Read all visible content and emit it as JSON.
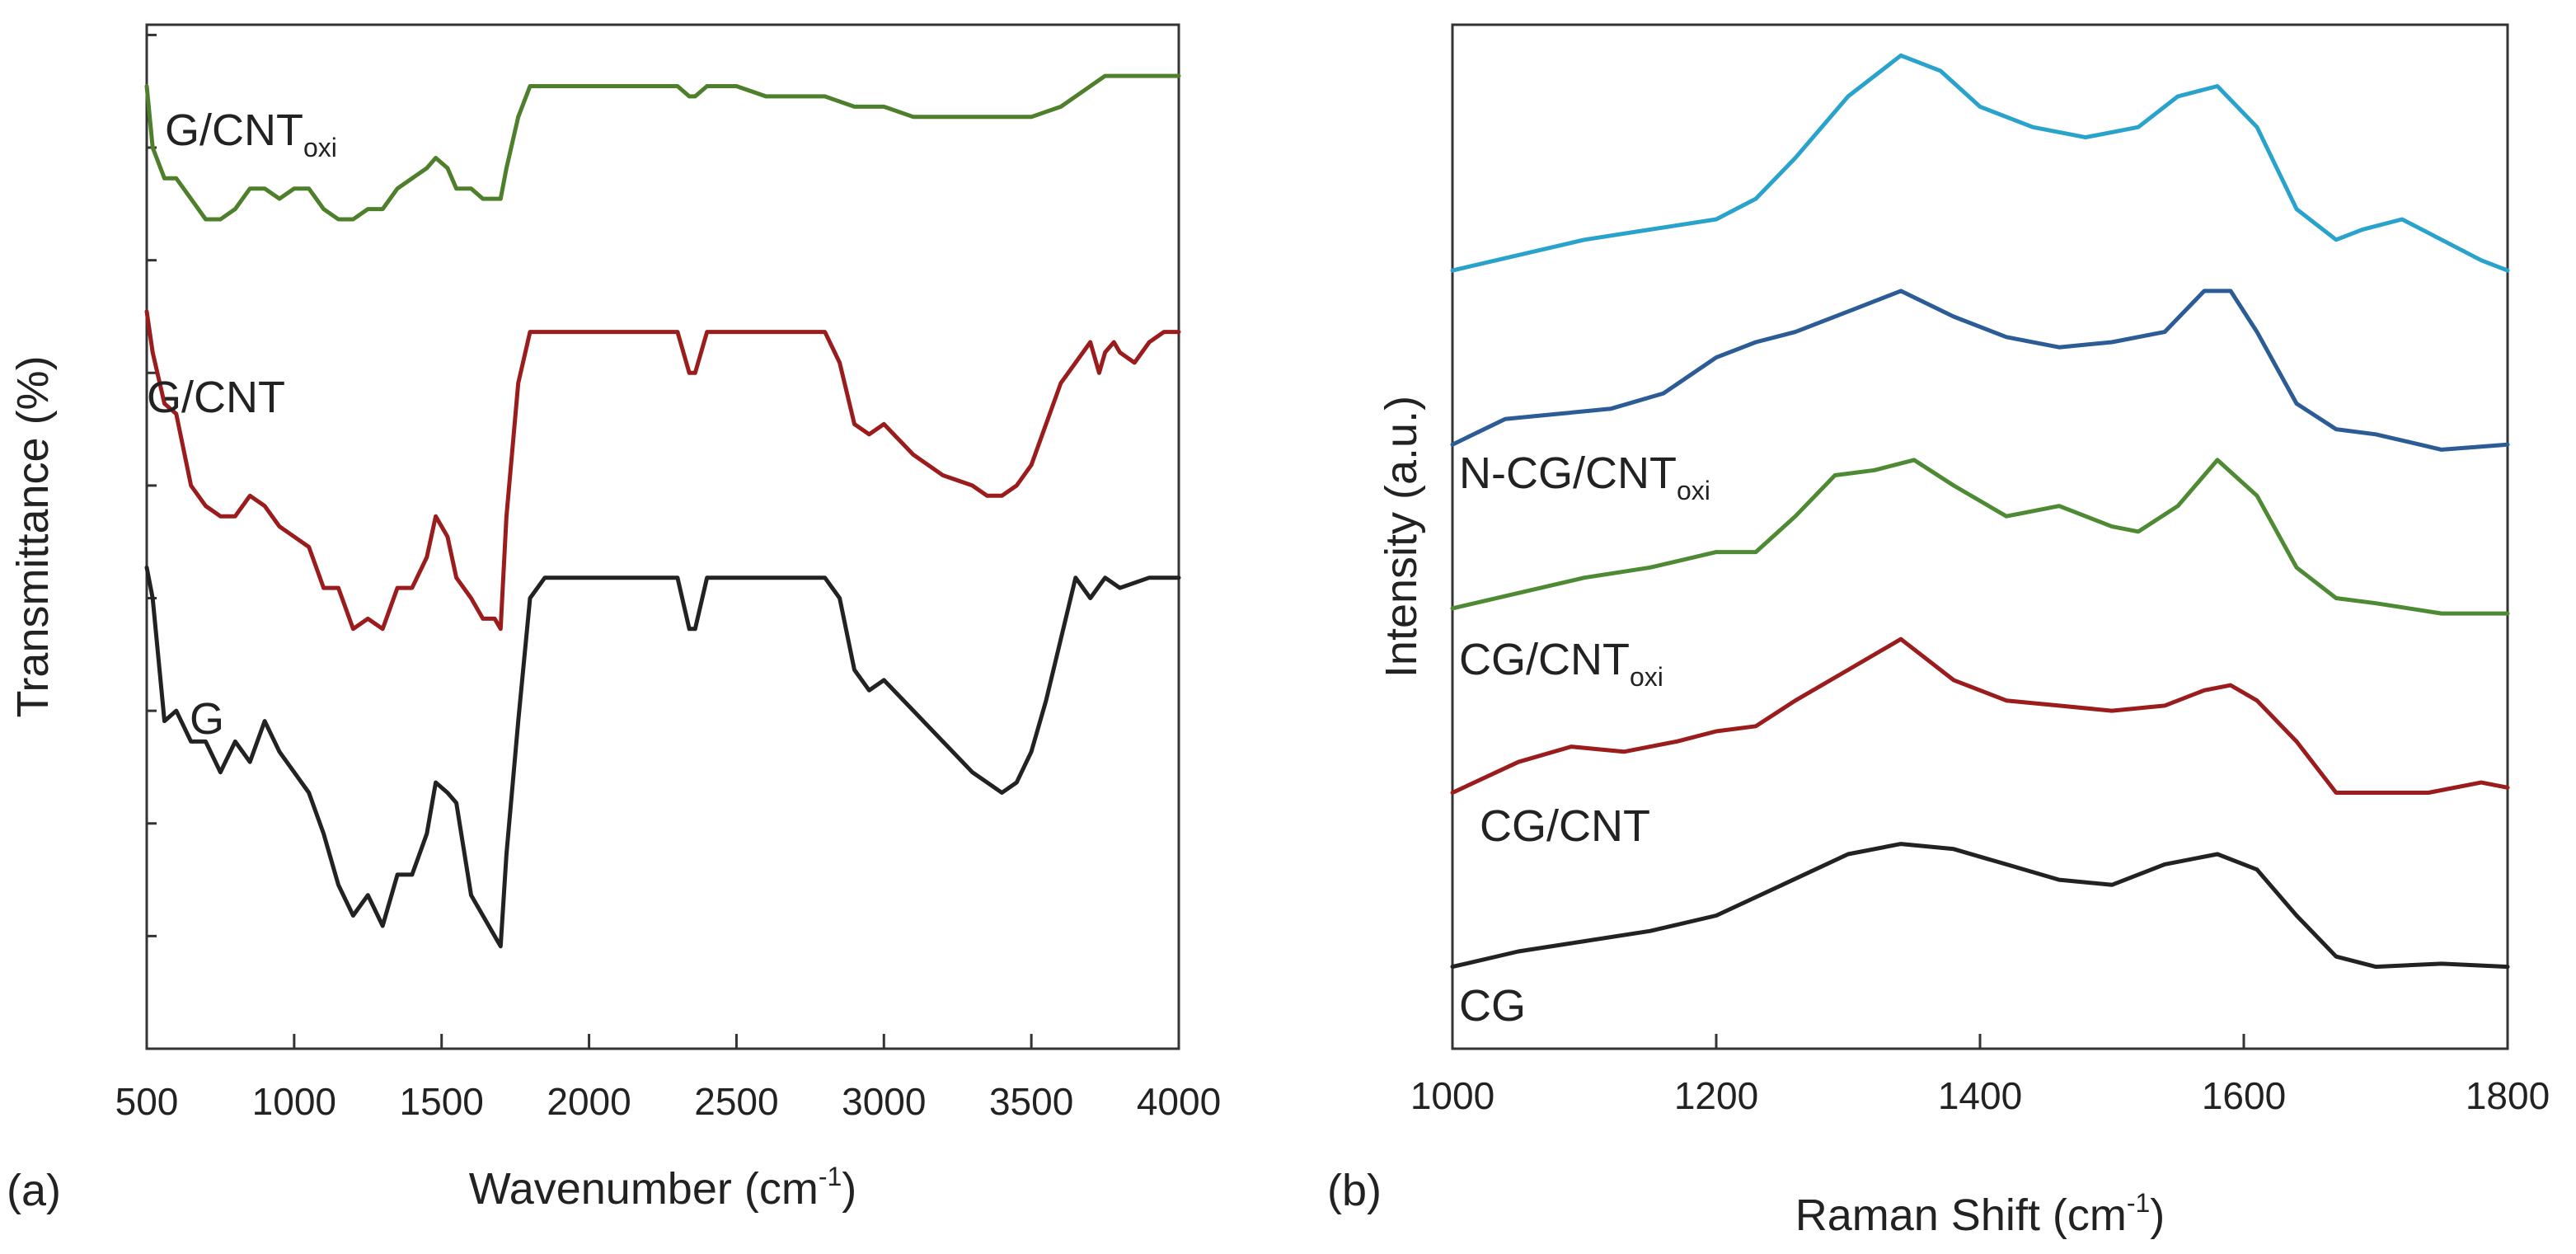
{
  "figure": {
    "panels": [
      "(a)",
      "(b)"
    ]
  },
  "chart_data": [
    {
      "type": "line",
      "panel_label": "(a)",
      "title": "",
      "xlabel": "Wavenumber (cm",
      "xlabel_sup": "-1",
      "xlabel_tail": ")",
      "ylabel": "Transmittance (%)",
      "xlim": [
        500,
        4000
      ],
      "ylim": [
        0,
        100
      ],
      "xticks": [
        500,
        1000,
        1500,
        2000,
        2500,
        3000,
        3500,
        4000
      ],
      "yticks": [
        0,
        11,
        22,
        33,
        44,
        55,
        66,
        77,
        88,
        99
      ],
      "y_tick_labels_shown": false,
      "grid": false,
      "legend": "inline labels",
      "series": [
        {
          "name": "G",
          "label_sub": "",
          "color": "#222222",
          "x": [
            500,
            520,
            560,
            600,
            650,
            700,
            750,
            800,
            850,
            900,
            950,
            1000,
            1050,
            1100,
            1150,
            1200,
            1250,
            1300,
            1350,
            1400,
            1450,
            1480,
            1520,
            1550,
            1600,
            1640,
            1680,
            1700,
            1720,
            1760,
            1800,
            1850,
            1900,
            2000,
            2100,
            2200,
            2300,
            2340,
            2360,
            2400,
            2500,
            2600,
            2700,
            2800,
            2850,
            2900,
            2950,
            3000,
            3100,
            3200,
            3300,
            3350,
            3400,
            3450,
            3500,
            3550,
            3600,
            3650,
            3700,
            3750,
            3800,
            3900,
            4000
          ],
          "y": [
            47,
            44,
            32,
            33,
            30,
            30,
            27,
            30,
            28,
            32,
            29,
            27,
            25,
            21,
            16,
            13,
            15,
            12,
            17,
            17,
            21,
            26,
            25,
            24,
            15,
            13,
            11,
            10,
            19,
            32,
            44,
            46,
            46,
            46,
            46,
            46,
            46,
            41,
            41,
            46,
            46,
            46,
            46,
            46,
            44,
            37,
            35,
            36,
            33,
            30,
            27,
            26,
            25,
            26,
            29,
            34,
            40,
            46,
            44,
            46,
            45,
            46,
            46
          ]
        },
        {
          "name": "G/CNT",
          "label_sub": "",
          "color": "#9b1c1c",
          "x": [
            500,
            520,
            560,
            600,
            650,
            700,
            750,
            800,
            850,
            900,
            950,
            1000,
            1050,
            1100,
            1150,
            1200,
            1250,
            1300,
            1350,
            1400,
            1450,
            1480,
            1520,
            1550,
            1600,
            1640,
            1680,
            1700,
            1720,
            1760,
            1800,
            1850,
            1900,
            2000,
            2100,
            2200,
            2300,
            2340,
            2360,
            2400,
            2500,
            2600,
            2700,
            2800,
            2850,
            2900,
            2950,
            3000,
            3100,
            3200,
            3300,
            3350,
            3400,
            3450,
            3500,
            3550,
            3600,
            3650,
            3700,
            3730,
            3750,
            3780,
            3800,
            3850,
            3900,
            3950,
            4000
          ],
          "y": [
            72,
            68,
            63,
            62,
            55,
            53,
            52,
            52,
            54,
            53,
            51,
            50,
            49,
            45,
            45,
            41,
            42,
            41,
            45,
            45,
            48,
            52,
            50,
            46,
            44,
            42,
            42,
            41,
            52,
            65,
            70,
            70,
            70,
            70,
            70,
            70,
            70,
            66,
            66,
            70,
            70,
            70,
            70,
            70,
            67,
            61,
            60,
            61,
            58,
            56,
            55,
            54,
            54,
            55,
            57,
            61,
            65,
            67,
            69,
            66,
            68,
            69,
            68,
            67,
            69,
            70,
            70
          ]
        },
        {
          "name": "G/CNT",
          "label_sub": "oxi",
          "color": "#4e7f2a",
          "x": [
            500,
            520,
            560,
            600,
            650,
            700,
            750,
            800,
            850,
            900,
            950,
            1000,
            1050,
            1100,
            1150,
            1200,
            1250,
            1300,
            1350,
            1400,
            1450,
            1480,
            1520,
            1550,
            1600,
            1640,
            1680,
            1700,
            1720,
            1760,
            1800,
            1850,
            1900,
            2000,
            2100,
            2200,
            2300,
            2340,
            2360,
            2400,
            2500,
            2600,
            2700,
            2800,
            2900,
            3000,
            3100,
            3200,
            3300,
            3400,
            3500,
            3600,
            3700,
            3750,
            3800,
            3900,
            4000
          ],
          "y": [
            94,
            88,
            85,
            85,
            83,
            81,
            81,
            82,
            84,
            84,
            83,
            84,
            84,
            82,
            81,
            81,
            82,
            82,
            84,
            85,
            86,
            87,
            86,
            84,
            84,
            83,
            83,
            83,
            86,
            91,
            94,
            94,
            94,
            94,
            94,
            94,
            94,
            93,
            93,
            94,
            94,
            93,
            93,
            93,
            92,
            92,
            91,
            91,
            91,
            91,
            91,
            92,
            94,
            95,
            95,
            95,
            95
          ]
        }
      ]
    },
    {
      "type": "line",
      "panel_label": "(b)",
      "title": "",
      "xlabel": "Raman Shift (cm",
      "xlabel_sup": "-1",
      "xlabel_tail": ")",
      "ylabel": "Intensity (a.u.)",
      "xlim": [
        1000,
        1800
      ],
      "ylim": [
        0,
        100
      ],
      "xticks": [
        1000,
        1200,
        1400,
        1600,
        1800
      ],
      "y_tick_labels_shown": false,
      "grid": false,
      "legend": "inline labels",
      "series": [
        {
          "name": "CG",
          "label_sub": "",
          "color": "#222222",
          "x": [
            1000,
            1050,
            1100,
            1150,
            1200,
            1250,
            1300,
            1340,
            1380,
            1420,
            1460,
            1500,
            1540,
            1580,
            1610,
            1640,
            1670,
            1700,
            1750,
            1800
          ],
          "y": [
            8,
            9.5,
            10.5,
            11.5,
            13,
            16,
            19,
            20,
            19.5,
            18,
            16.5,
            16,
            18,
            19,
            17.5,
            13,
            9,
            8,
            8.3,
            8
          ]
        },
        {
          "name": "CG/CNT",
          "label_sub": "",
          "color": "#9b1c1c",
          "x": [
            1000,
            1050,
            1090,
            1130,
            1170,
            1200,
            1230,
            1260,
            1300,
            1340,
            1380,
            1420,
            1460,
            1500,
            1540,
            1570,
            1590,
            1610,
            1640,
            1670,
            1700,
            1740,
            1780,
            1800
          ],
          "y": [
            25,
            28,
            29.5,
            29,
            30,
            31,
            31.5,
            34,
            37,
            40,
            36,
            34,
            33.5,
            33,
            33.5,
            35,
            35.5,
            34,
            30,
            25,
            25,
            25,
            26,
            25.5
          ]
        },
        {
          "name": "CG/CNT",
          "label_sub": "oxi",
          "color": "#4e8a33",
          "x": [
            1000,
            1050,
            1100,
            1150,
            1200,
            1230,
            1260,
            1290,
            1320,
            1350,
            1380,
            1420,
            1460,
            1500,
            1520,
            1550,
            1580,
            1610,
            1640,
            1670,
            1700,
            1750,
            1800
          ],
          "y": [
            43,
            44.5,
            46,
            47,
            48.5,
            48.5,
            52,
            56,
            56.5,
            57.5,
            55,
            52,
            53,
            51,
            50.5,
            53,
            57.5,
            54,
            47,
            44,
            43.5,
            42.5,
            42.5
          ]
        },
        {
          "name": "N-CG/CNT",
          "label_sub": "oxi",
          "color": "#2b5c96",
          "x": [
            1000,
            1040,
            1080,
            1120,
            1160,
            1200,
            1230,
            1260,
            1300,
            1340,
            1380,
            1420,
            1460,
            1500,
            1540,
            1570,
            1590,
            1610,
            1640,
            1670,
            1700,
            1750,
            1800
          ],
          "y": [
            59,
            61.5,
            62,
            62.5,
            64,
            67.5,
            69,
            70,
            72,
            74,
            71.5,
            69.5,
            68.5,
            69,
            70,
            74,
            74,
            70,
            63,
            60.5,
            60,
            58.5,
            59
          ]
        },
        {
          "name": "",
          "label_sub": "",
          "color": "#2aa3cc",
          "x": [
            1000,
            1050,
            1100,
            1150,
            1200,
            1230,
            1260,
            1300,
            1340,
            1370,
            1400,
            1440,
            1480,
            1520,
            1550,
            1580,
            1610,
            1640,
            1670,
            1690,
            1720,
            1750,
            1780,
            1800
          ],
          "y": [
            76,
            77.5,
            79,
            80,
            81,
            83,
            87,
            93,
            97,
            95.5,
            92,
            90,
            89,
            90,
            93,
            94,
            90,
            82,
            79,
            80,
            81,
            79,
            77,
            76
          ]
        }
      ]
    }
  ]
}
